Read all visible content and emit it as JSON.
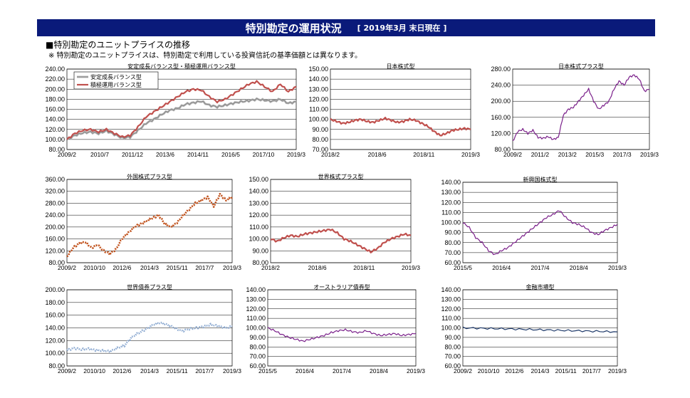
{
  "header": {
    "title": "特別勘定の運用状況",
    "date": "[ 2019年3月 末日現在 ]"
  },
  "section": {
    "title": "■特別勘定のユニットプライスの推移",
    "note": "※ 特別勘定のユニットプライスは、特別勘定で利用している投資信託の基準価額とは異なります。"
  },
  "colors": {
    "banner": "#0a1a7a",
    "red": "#c0504d",
    "purple": "#7a1f8a",
    "orange": "#c0501a",
    "lightblue": "#8aa8d0",
    "navy": "#1f3a6a",
    "gray": "#8a8a8a"
  },
  "chart_data": [
    {
      "id": "c1",
      "type": "line",
      "title": "安定成長バランス型・積極運用バランス型",
      "x_ticks": [
        "2009/2",
        "2010/7",
        "2011/12",
        "2013/6",
        "2014/11",
        "2016/5",
        "2017/10",
        "2019/3"
      ],
      "y_ticks": [
        "80.00",
        "100.00",
        "120.00",
        "140.00",
        "160.00",
        "180.00",
        "200.00",
        "220.00",
        "240.00"
      ],
      "ylim": [
        80,
        240
      ],
      "legend": "top-left",
      "series": [
        {
          "name": "安定成長バランス型",
          "style": "gray",
          "values": [
            100,
            108,
            113,
            115,
            112,
            117,
            110,
            103,
            105,
            118,
            132,
            140,
            150,
            158,
            162,
            170,
            173,
            176,
            168,
            165,
            168,
            172,
            175,
            177,
            180,
            178,
            176,
            180,
            172,
            175
          ]
        },
        {
          "name": "積極運用バランス型",
          "style": "red",
          "values": [
            100,
            112,
            118,
            120,
            115,
            120,
            112,
            105,
            108,
            125,
            145,
            155,
            165,
            175,
            185,
            195,
            200,
            198,
            185,
            175,
            180,
            190,
            200,
            210,
            215,
            205,
            195,
            210,
            195,
            205
          ]
        }
      ]
    },
    {
      "id": "c2",
      "type": "line",
      "title": "日本株式型",
      "x_ticks": [
        "2018/2",
        "2018/6",
        "2018/11",
        "2019/3"
      ],
      "y_ticks": [
        "70.00",
        "80.00",
        "90.00",
        "100.00",
        "110.00",
        "120.00",
        "130.00",
        "140.00",
        "150.00"
      ],
      "ylim": [
        70,
        150
      ],
      "series": [
        {
          "style": "red",
          "values": [
            100,
            98,
            96,
            97,
            99,
            100,
            98,
            97,
            99,
            101,
            99,
            97,
            98,
            100,
            99,
            96,
            93,
            88,
            84,
            86,
            89,
            90,
            91,
            90
          ]
        }
      ]
    },
    {
      "id": "c3",
      "type": "line",
      "title": "日本株式プラス型",
      "x_ticks": [
        "2009/2",
        "2011/2",
        "2013/2",
        "2015/3",
        "2017/3",
        "2019/3"
      ],
      "y_ticks": [
        "80.00",
        "120.00",
        "160.00",
        "200.00",
        "240.00",
        "280.00"
      ],
      "ylim": [
        80,
        280
      ],
      "series": [
        {
          "style": "purple",
          "values": [
            100,
            125,
            130,
            120,
            128,
            110,
            108,
            112,
            105,
            110,
            165,
            180,
            185,
            200,
            215,
            230,
            200,
            180,
            190,
            200,
            230,
            250,
            240,
            260,
            265,
            255,
            225,
            230
          ]
        }
      ]
    },
    {
      "id": "c4",
      "type": "line",
      "title": "外国株式プラス型",
      "x_ticks": [
        "2009/2",
        "2010/10",
        "2012/6",
        "2014/3",
        "2015/11",
        "2017/7",
        "2019/3"
      ],
      "y_ticks": [
        "80.00",
        "120.00",
        "160.00",
        "200.00",
        "240.00",
        "280.00",
        "320.00",
        "360.00"
      ],
      "ylim": [
        80,
        360
      ],
      "series": [
        {
          "style": "orange",
          "values": [
            100,
            130,
            145,
            150,
            130,
            140,
            120,
            110,
            125,
            160,
            180,
            200,
            210,
            220,
            230,
            240,
            210,
            200,
            215,
            240,
            260,
            280,
            290,
            300,
            270,
            310,
            290,
            300
          ]
        }
      ]
    },
    {
      "id": "c5",
      "type": "line",
      "title": "世界株式プラス型",
      "x_ticks": [
        "2018/2",
        "2018/6",
        "2018/11",
        "2019/3"
      ],
      "y_ticks": [
        "80.00",
        "90.00",
        "100.00",
        "110.00",
        "120.00",
        "130.00",
        "140.00",
        "150.00"
      ],
      "ylim": [
        80,
        150
      ],
      "series": [
        {
          "style": "red",
          "values": [
            100,
            98,
            101,
            103,
            102,
            104,
            105,
            106,
            107,
            108,
            105,
            100,
            98,
            95,
            92,
            89,
            92,
            97,
            100,
            102,
            104,
            103
          ]
        }
      ]
    },
    {
      "id": "c6",
      "type": "line",
      "title": "新興国株式型",
      "x_ticks": [
        "2015/5",
        "2016/4",
        "2017/4",
        "2018/4",
        "2019/3"
      ],
      "y_ticks": [
        "60.00",
        "70.00",
        "80.00",
        "90.00",
        "100.00",
        "110.00",
        "120.00",
        "130.00",
        "140.00"
      ],
      "ylim": [
        60,
        140
      ],
      "series": [
        {
          "style": "purple",
          "values": [
            100,
            95,
            85,
            80,
            72,
            68,
            72,
            75,
            80,
            85,
            90,
            95,
            100,
            105,
            108,
            112,
            105,
            100,
            98,
            95,
            90,
            88,
            92,
            95,
            98
          ]
        }
      ]
    },
    {
      "id": "c7",
      "type": "line",
      "title": "世界債券プラス型",
      "x_ticks": [
        "2009/2",
        "2010/10",
        "2012/6",
        "2014/3",
        "2015/11",
        "2017/7",
        "2019/3"
      ],
      "y_ticks": [
        "80.00",
        "100.00",
        "120.00",
        "140.00",
        "160.00",
        "180.00",
        "200.00"
      ],
      "ylim": [
        80,
        200
      ],
      "series": [
        {
          "style": "lightblue",
          "values": [
            105,
            108,
            106,
            107,
            105,
            104,
            103,
            108,
            112,
            125,
            132,
            138,
            145,
            148,
            145,
            140,
            135,
            138,
            140,
            142,
            145,
            143,
            140,
            142
          ]
        }
      ]
    },
    {
      "id": "c8",
      "type": "line",
      "title": "オーストラリア債券型",
      "x_ticks": [
        "2015/5",
        "2016/4",
        "2017/4",
        "2018/4",
        "2019/3"
      ],
      "y_ticks": [
        "60.00",
        "70.00",
        "80.00",
        "90.00",
        "100.00",
        "110.00",
        "120.00",
        "130.00",
        "140.00"
      ],
      "ylim": [
        60,
        140
      ],
      "series": [
        {
          "style": "purple",
          "values": [
            100,
            97,
            93,
            90,
            88,
            86,
            88,
            90,
            92,
            95,
            97,
            98,
            96,
            95,
            97,
            94,
            92,
            93,
            94,
            92,
            93,
            94
          ]
        }
      ]
    },
    {
      "id": "c9",
      "type": "line",
      "title": "金融市場型",
      "x_ticks": [
        "2009/2",
        "2010/10",
        "2012/6",
        "2014/3",
        "2015/11",
        "2017/7",
        "2019/3"
      ],
      "y_ticks": [
        "60.00",
        "70.00",
        "80.00",
        "90.00",
        "100.00",
        "110.00",
        "120.00",
        "130.00",
        "140.00"
      ],
      "ylim": [
        60,
        140
      ],
      "series": [
        {
          "style": "navy",
          "values": [
            100,
            99.7,
            99.3,
            99,
            98.6,
            98.2,
            97.8,
            97.4,
            97,
            96.6,
            96.2,
            95.8
          ]
        }
      ]
    }
  ]
}
